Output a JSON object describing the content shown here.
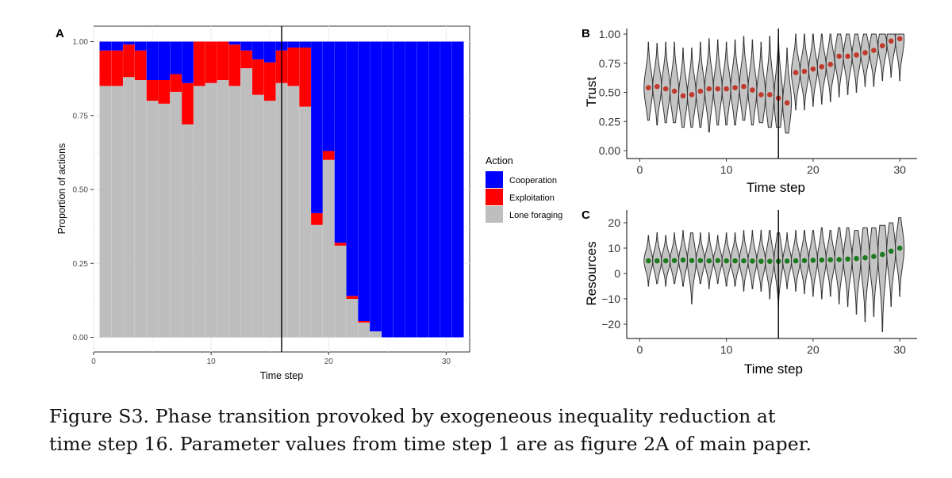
{
  "caption": {
    "line1": "Figure S3.  Phase transition provoked by exogeneous inequality reduction at",
    "line2": "time step 16. Parameter values from time step 1 are as figure 2A of main paper."
  },
  "colors": {
    "cooperation": "#0000ff",
    "exploitation": "#ff0000",
    "lone_foraging": "#bebebe",
    "trust_dot": "#c0392b",
    "resources_dot": "#1e7a1e",
    "grid": "#ebebeb",
    "panel_border": "#333333"
  },
  "chart_data": [
    {
      "panel": "A",
      "type": "bar",
      "stacked": true,
      "xlabel": "Time step",
      "ylabel": "Proportion of actions",
      "xlim": [
        0,
        32
      ],
      "ylim": [
        0,
        1
      ],
      "xticks": [
        "0",
        "10",
        "20",
        "30"
      ],
      "xtick_values": [
        0,
        10,
        20,
        30
      ],
      "yticks": [
        "0.00",
        "0.25",
        "0.50",
        "0.75",
        "1.00"
      ],
      "ytick_values": [
        0,
        0.25,
        0.5,
        0.75,
        1
      ],
      "vline_x": 16,
      "grid": true,
      "legend": {
        "title": "Action",
        "position": "right",
        "entries": [
          "Cooperation",
          "Exploitation",
          "Lone foraging"
        ]
      },
      "x": [
        1,
        2,
        3,
        4,
        5,
        6,
        7,
        8,
        9,
        10,
        11,
        12,
        13,
        14,
        15,
        16,
        17,
        18,
        19,
        20,
        21,
        22,
        23,
        24,
        25,
        26,
        27,
        28,
        29,
        30,
        31
      ],
      "series": [
        {
          "name": "Lone foraging",
          "values": [
            0.85,
            0.85,
            0.88,
            0.87,
            0.8,
            0.79,
            0.83,
            0.72,
            0.85,
            0.86,
            0.87,
            0.85,
            0.91,
            0.82,
            0.8,
            0.86,
            0.85,
            0.78,
            0.38,
            0.6,
            0.31,
            0.13,
            0.05,
            0.02,
            0,
            0,
            0,
            0,
            0,
            0,
            0
          ]
        },
        {
          "name": "Exploitation",
          "values": [
            0.12,
            0.12,
            0.11,
            0.1,
            0.07,
            0.08,
            0.06,
            0.14,
            0.15,
            0.14,
            0.13,
            0.14,
            0.06,
            0.12,
            0.13,
            0.11,
            0.13,
            0.2,
            0.04,
            0.03,
            0.01,
            0.01,
            0.005,
            0,
            0,
            0,
            0,
            0,
            0,
            0,
            0
          ]
        },
        {
          "name": "Cooperation",
          "values": [
            0.03,
            0.03,
            0.01,
            0.03,
            0.13,
            0.13,
            0.11,
            0.14,
            0,
            0,
            0,
            0.01,
            0.03,
            0.06,
            0.07,
            0.03,
            0.02,
            0.02,
            0.58,
            0.37,
            0.68,
            0.86,
            0.945,
            0.98,
            1,
            1,
            1,
            1,
            1,
            1,
            1
          ]
        }
      ]
    },
    {
      "panel": "B",
      "type": "scatter",
      "subtype": "violin",
      "xlabel": "Time step",
      "ylabel": "Trust",
      "xlim": [
        -1.5,
        32
      ],
      "ylim": [
        -0.03,
        1.03
      ],
      "xticks": [
        "0",
        "10",
        "20",
        "30"
      ],
      "xtick_values": [
        0,
        10,
        20,
        30
      ],
      "yticks": [
        "0.00",
        "0.25",
        "0.50",
        "0.75",
        "1.00"
      ],
      "ytick_values": [
        0,
        0.25,
        0.5,
        0.75,
        1
      ],
      "vline_x": 16,
      "grid": false,
      "x": [
        1,
        2,
        3,
        4,
        5,
        6,
        7,
        8,
        9,
        10,
        11,
        12,
        13,
        14,
        15,
        16,
        17,
        18,
        19,
        20,
        21,
        22,
        23,
        24,
        25,
        26,
        27,
        28,
        29,
        30
      ],
      "means": [
        0.54,
        0.55,
        0.53,
        0.51,
        0.47,
        0.48,
        0.51,
        0.53,
        0.53,
        0.53,
        0.54,
        0.55,
        0.52,
        0.48,
        0.48,
        0.45,
        0.41,
        0.67,
        0.68,
        0.7,
        0.72,
        0.74,
        0.81,
        0.81,
        0.82,
        0.84,
        0.86,
        0.9,
        0.94,
        0.96
      ],
      "min": [
        0.26,
        0.22,
        0.24,
        0.24,
        0.2,
        0.2,
        0.2,
        0.16,
        0.22,
        0.22,
        0.22,
        0.26,
        0.22,
        0.24,
        0.2,
        0.2,
        0.15,
        0.35,
        0.35,
        0.38,
        0.4,
        0.42,
        0.46,
        0.48,
        0.5,
        0.55,
        0.55,
        0.6,
        0.63,
        0.6
      ],
      "max": [
        0.93,
        0.92,
        0.93,
        0.93,
        0.88,
        0.88,
        0.93,
        0.96,
        0.95,
        0.93,
        0.95,
        0.98,
        0.95,
        0.93,
        0.98,
        0.98,
        0.88,
        1.0,
        1.0,
        1.0,
        1.0,
        1.0,
        1.0,
        1.0,
        1.0,
        1.0,
        1.0,
        1.0,
        1.0,
        1.0
      ]
    },
    {
      "panel": "C",
      "type": "scatter",
      "subtype": "violin",
      "xlabel": "Time step",
      "ylabel": "Resources",
      "xlim": [
        -1.5,
        32
      ],
      "ylim": [
        -24,
        23
      ],
      "xticks": [
        "0",
        "10",
        "20",
        "30"
      ],
      "xtick_values": [
        0,
        10,
        20,
        30
      ],
      "yticks": [
        "−20",
        "−10",
        "0",
        "10",
        "20"
      ],
      "ytick_values": [
        -20,
        -10,
        0,
        10,
        20
      ],
      "vline_x": 16,
      "grid": false,
      "x": [
        1,
        2,
        3,
        4,
        5,
        6,
        7,
        8,
        9,
        10,
        11,
        12,
        13,
        14,
        15,
        16,
        17,
        18,
        19,
        20,
        21,
        22,
        23,
        24,
        25,
        26,
        27,
        28,
        29,
        30
      ],
      "means": [
        5.0,
        5.0,
        5.0,
        5.1,
        5.3,
        5.1,
        5.1,
        5.0,
        5.1,
        5.0,
        5.0,
        5.0,
        4.9,
        4.8,
        4.8,
        4.8,
        4.9,
        5.0,
        5.1,
        5.2,
        5.3,
        5.4,
        5.5,
        5.7,
        5.9,
        6.2,
        6.7,
        7.5,
        8.8,
        10.0
      ],
      "min": [
        -5,
        -4,
        -5,
        -4,
        -5,
        -12,
        -4,
        -6,
        -4,
        -5,
        -5,
        -7,
        -6,
        -7,
        -10,
        -13,
        -6,
        -7,
        -8,
        -9,
        -10,
        -9,
        -12,
        -13,
        -16,
        -19,
        -17,
        -23,
        -13,
        -9
      ],
      "max": [
        15,
        16,
        15,
        16,
        17,
        16,
        16,
        16,
        15,
        16,
        16,
        17,
        17,
        17,
        17,
        16,
        16,
        17,
        17,
        17,
        18,
        17,
        18,
        18,
        17,
        18,
        18,
        19,
        20,
        22
      ]
    }
  ]
}
